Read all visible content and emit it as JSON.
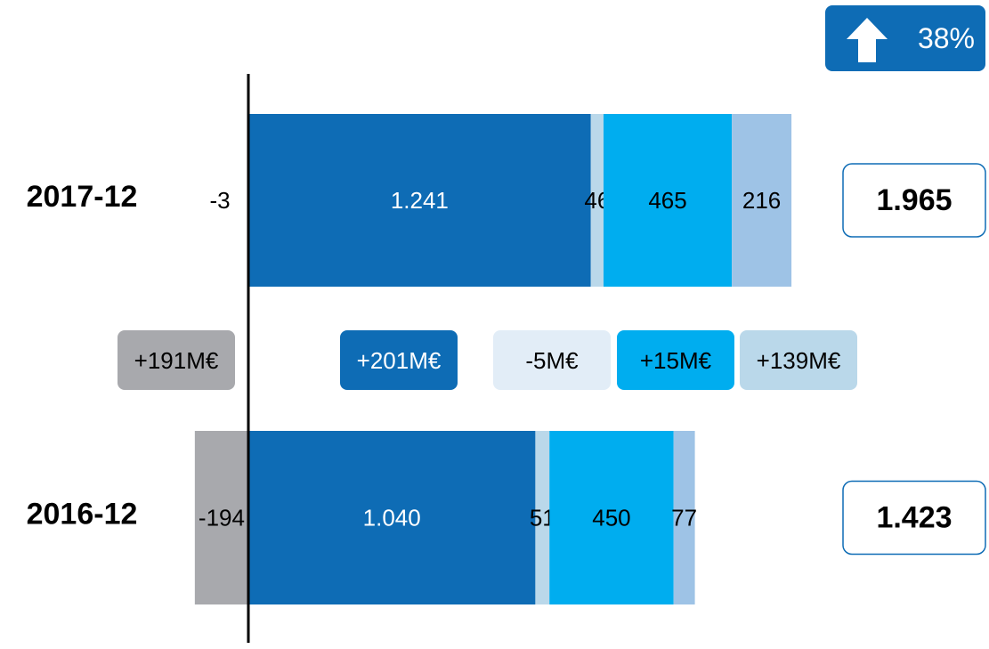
{
  "change_badge": {
    "value": "38%",
    "icon": "arrow-up-icon",
    "color": "#0e6cb5"
  },
  "colors": {
    "gray": "#a8a9ad",
    "dark_blue": "#0e6cb5",
    "pale_blue": "#bad8ea",
    "cyan": "#00adef",
    "light_blue": "#9ec3e6",
    "axis": "#000000"
  },
  "chart_data": {
    "type": "bar",
    "orientation": "horizontal",
    "stacked": true,
    "categories": [
      "2017-12",
      "2016-12"
    ],
    "series": [
      {
        "values": [
          -3,
          -194
        ],
        "labels": [
          "-3",
          "-194"
        ],
        "color": "#a8a9ad"
      },
      {
        "values": [
          1241,
          1040
        ],
        "labels": [
          "1.241",
          "1.040"
        ],
        "color": "#0e6cb5"
      },
      {
        "values": [
          46,
          51
        ],
        "labels": [
          "46",
          "51"
        ],
        "color": "#bad8ea"
      },
      {
        "values": [
          465,
          450
        ],
        "labels": [
          "465",
          "450"
        ],
        "color": "#00adef"
      },
      {
        "values": [
          216,
          77
        ],
        "labels": [
          "216",
          "77"
        ],
        "color": "#9ec3e6"
      }
    ],
    "totals": [
      {
        "value": 1965,
        "label": "1.965"
      },
      {
        "value": 1423,
        "label": "1.423"
      }
    ],
    "changes": [
      {
        "label": "+191M€",
        "color": "#a8a9ad"
      },
      {
        "label": "+201M€",
        "color": "#0e6cb5"
      },
      {
        "label": "-5M€",
        "color": "#e2edf7"
      },
      {
        "label": "+15M€",
        "color": "#00adef"
      },
      {
        "label": "+139M€",
        "color": "#bad8ea"
      }
    ],
    "grid": false,
    "legend": "none"
  }
}
